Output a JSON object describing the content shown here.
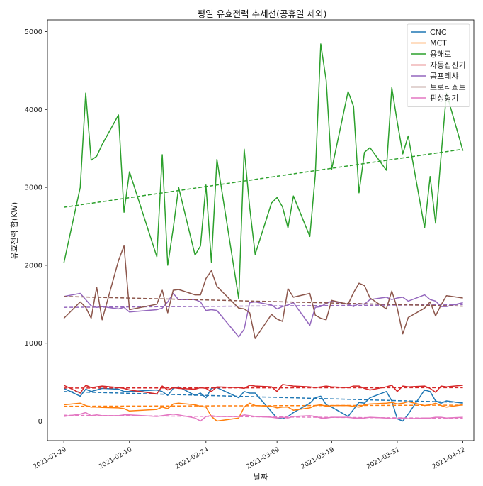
{
  "chart_data": {
    "type": "line",
    "title": "평일 유효전력 추세선(공휴일 제외)",
    "xlabel": "날짜",
    "ylabel": "유효전력 합(KW)",
    "xlim": [
      "2021-01-26",
      "2021-04-14"
    ],
    "ylim": [
      -250,
      5150
    ],
    "yticks": [
      0,
      1000,
      2000,
      3000,
      4000,
      5000
    ],
    "xticks": [
      "2021-01-29",
      "2021-02-10",
      "2021-02-24",
      "2021-03-09",
      "2021-03-19",
      "2021-03-31",
      "2021-04-12"
    ],
    "legend_position": "top-right",
    "x": [
      "2021-01-29",
      "2021-02-01",
      "2021-02-02",
      "2021-02-03",
      "2021-02-04",
      "2021-02-05",
      "2021-02-08",
      "2021-02-09",
      "2021-02-10",
      "2021-02-15",
      "2021-02-16",
      "2021-02-17",
      "2021-02-18",
      "2021-02-19",
      "2021-02-22",
      "2021-02-23",
      "2021-02-24",
      "2021-02-25",
      "2021-02-26",
      "2021-03-02",
      "2021-03-03",
      "2021-03-04",
      "2021-03-05",
      "2021-03-08",
      "2021-03-09",
      "2021-03-10",
      "2021-03-11",
      "2021-03-12",
      "2021-03-15",
      "2021-03-16",
      "2021-03-17",
      "2021-03-18",
      "2021-03-19",
      "2021-03-22",
      "2021-03-23",
      "2021-03-24",
      "2021-03-25",
      "2021-03-26",
      "2021-03-29",
      "2021-03-30",
      "2021-03-31",
      "2021-04-01",
      "2021-04-02",
      "2021-04-05",
      "2021-04-06",
      "2021-04-07",
      "2021-04-08",
      "2021-04-09",
      "2021-04-12"
    ],
    "series": [
      {
        "name": "CNC",
        "color": "#1f77b4",
        "values": [
          420,
          320,
          410,
          380,
          400,
          420,
          410,
          380,
          380,
          400,
          380,
          330,
          420,
          440,
          330,
          360,
          300,
          420,
          430,
          300,
          380,
          360,
          360,
          120,
          40,
          30,
          60,
          110,
          230,
          300,
          320,
          210,
          180,
          60,
          150,
          240,
          230,
          300,
          380,
          260,
          30,
          0,
          90,
          400,
          380,
          260,
          230,
          260,
          230
        ],
        "trend": [
          380,
          240
        ]
      },
      {
        "name": "MCT",
        "color": "#ff7f0e",
        "values": [
          210,
          230,
          200,
          180,
          180,
          175,
          170,
          160,
          130,
          150,
          180,
          160,
          220,
          230,
          210,
          190,
          180,
          60,
          0,
          40,
          180,
          230,
          200,
          190,
          170,
          180,
          180,
          140,
          170,
          200,
          210,
          190,
          200,
          200,
          190,
          180,
          210,
          220,
          230,
          240,
          220,
          230,
          250,
          200,
          210,
          230,
          200,
          180,
          210
        ],
        "trend": [
          190,
          205
        ]
      },
      {
        "name": "용해로",
        "color": "#2ca02c",
        "values": [
          2030,
          3000,
          4210,
          3350,
          3400,
          3550,
          3930,
          2680,
          3200,
          2110,
          3420,
          2000,
          2470,
          3000,
          2130,
          2250,
          3030,
          2040,
          3360,
          1570,
          3490,
          2740,
          2140,
          2800,
          2870,
          2750,
          2480,
          2890,
          2370,
          3160,
          4840,
          4370,
          3230,
          4230,
          4040,
          2930,
          3450,
          3510,
          3220,
          4280,
          3840,
          3430,
          3660,
          2480,
          3140,
          2540,
          3400,
          4210,
          3470
        ],
        "trend": [
          2745,
          3490
        ]
      },
      {
        "name": "자동집진기",
        "color": "#d62728",
        "values": [
          460,
          360,
          460,
          430,
          440,
          450,
          430,
          420,
          400,
          350,
          450,
          400,
          430,
          420,
          410,
          430,
          420,
          380,
          440,
          430,
          420,
          460,
          450,
          440,
          380,
          470,
          460,
          450,
          440,
          430,
          440,
          450,
          440,
          430,
          450,
          450,
          420,
          400,
          440,
          460,
          380,
          450,
          440,
          450,
          420,
          370,
          450,
          440,
          460
        ],
        "trend": [
          425,
          430
        ]
      },
      {
        "name": "콤프레샤",
        "color": "#9467bd",
        "values": [
          1600,
          1640,
          1560,
          1480,
          1460,
          1470,
          1440,
          1460,
          1400,
          1430,
          1450,
          1530,
          1640,
          1560,
          1560,
          1530,
          1420,
          1430,
          1420,
          1080,
          1180,
          1520,
          1530,
          1490,
          1440,
          1470,
          1490,
          1520,
          1230,
          1460,
          1470,
          1510,
          1540,
          1500,
          1470,
          1510,
          1500,
          1560,
          1590,
          1560,
          1580,
          1590,
          1540,
          1620,
          1560,
          1540,
          1470,
          1470,
          1520
        ],
        "trend": [
          1460,
          1495
        ]
      },
      {
        "name": "트로리쇼트",
        "color": "#8c564b",
        "values": [
          1320,
          1530,
          1460,
          1320,
          1720,
          1300,
          2060,
          2250,
          1430,
          1500,
          1680,
          1390,
          1680,
          1690,
          1620,
          1620,
          1830,
          1930,
          1730,
          1450,
          1440,
          1390,
          1060,
          1370,
          1310,
          1280,
          1700,
          1590,
          1640,
          1360,
          1320,
          1300,
          1550,
          1500,
          1650,
          1770,
          1740,
          1580,
          1440,
          1670,
          1450,
          1120,
          1330,
          1450,
          1530,
          1350,
          1490,
          1610,
          1580
        ],
        "trend": [
          1600,
          1475
        ]
      },
      {
        "name": "핀성형기",
        "color": "#e377c2",
        "values": [
          60,
          90,
          110,
          70,
          80,
          70,
          70,
          80,
          80,
          60,
          70,
          80,
          90,
          80,
          40,
          0,
          60,
          70,
          60,
          60,
          80,
          70,
          60,
          50,
          40,
          50,
          40,
          60,
          70,
          60,
          40,
          40,
          50,
          50,
          40,
          40,
          40,
          50,
          40,
          30,
          30,
          40,
          30,
          40,
          40,
          50,
          50,
          40,
          50
        ],
        "trend": [
          75,
          35
        ]
      }
    ]
  }
}
